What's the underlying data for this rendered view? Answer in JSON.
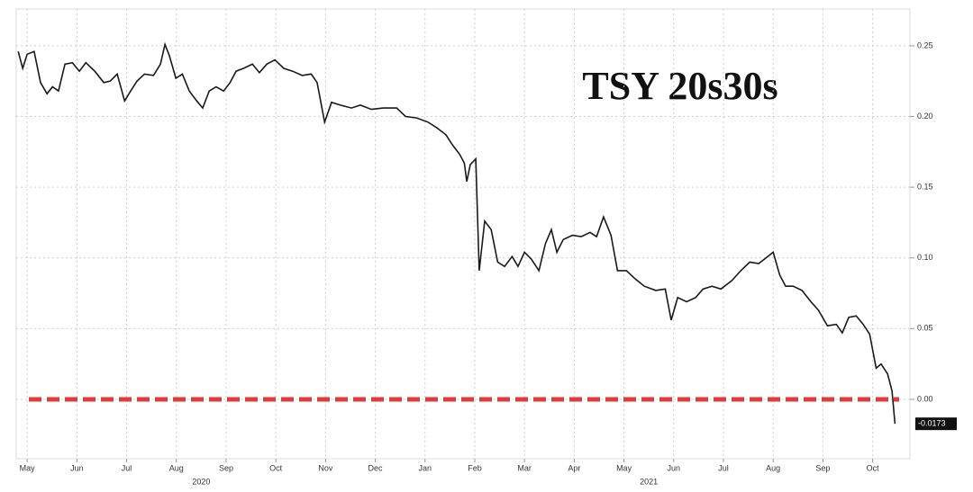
{
  "chart_data": {
    "type": "line",
    "title": "TSY 20s30s",
    "x": [
      -0.18,
      -0.09,
      0,
      0.14,
      0.27,
      0.4,
      0.51,
      0.63,
      0.76,
      0.91,
      1.05,
      1.18,
      1.36,
      1.54,
      1.67,
      1.81,
      1.96,
      2.08,
      2.21,
      2.36,
      2.54,
      2.68,
      2.77,
      2.86,
      2.99,
      3.12,
      3.26,
      3.41,
      3.53,
      3.66,
      3.8,
      3.95,
      4.08,
      4.2,
      4.35,
      4.53,
      4.67,
      4.82,
      4.98,
      5.16,
      5.34,
      5.53,
      5.71,
      5.83,
      5.98,
      6.12,
      6.3,
      6.52,
      6.7,
      6.92,
      7.16,
      7.43,
      7.61,
      7.83,
      8.06,
      8.24,
      8.42,
      8.55,
      8.7,
      8.79,
      8.84,
      8.91,
      9.02,
      9.09,
      9.2,
      9.33,
      9.46,
      9.6,
      9.75,
      9.87,
      10.0,
      10.14,
      10.29,
      10.42,
      10.54,
      10.65,
      10.78,
      10.96,
      11.14,
      11.32,
      11.45,
      11.59,
      11.74,
      11.87,
      12.05,
      12.23,
      12.41,
      12.64,
      12.83,
      12.95,
      13.08,
      13.26,
      13.44,
      13.59,
      13.77,
      13.95,
      14.17,
      14.35,
      14.53,
      14.71,
      14.89,
      15.0,
      15.13,
      15.25,
      15.4,
      15.58,
      15.76,
      15.91,
      16.09,
      16.27,
      16.39,
      16.52,
      16.67,
      16.81,
      16.94,
      17.07,
      17.17,
      17.3,
      17.39,
      17.45
    ],
    "series": [
      {
        "name": "TSY 20s30s",
        "color": "#1a1a1a",
        "values": [
          0.246,
          0.234,
          0.244,
          0.246,
          0.224,
          0.216,
          0.221,
          0.218,
          0.237,
          0.238,
          0.232,
          0.238,
          0.232,
          0.224,
          0.225,
          0.23,
          0.211,
          0.218,
          0.225,
          0.23,
          0.229,
          0.237,
          0.251,
          0.243,
          0.227,
          0.23,
          0.218,
          0.211,
          0.206,
          0.218,
          0.221,
          0.218,
          0.224,
          0.232,
          0.234,
          0.237,
          0.231,
          0.237,
          0.24,
          0.234,
          0.232,
          0.229,
          0.23,
          0.224,
          0.196,
          0.21,
          0.208,
          0.206,
          0.208,
          0.205,
          0.206,
          0.206,
          0.2,
          0.199,
          0.196,
          0.192,
          0.187,
          0.18,
          0.173,
          0.167,
          0.154,
          0.166,
          0.17,
          0.091,
          0.126,
          0.12,
          0.097,
          0.094,
          0.101,
          0.094,
          0.104,
          0.099,
          0.091,
          0.11,
          0.12,
          0.104,
          0.113,
          0.116,
          0.115,
          0.118,
          0.115,
          0.129,
          0.116,
          0.091,
          0.091,
          0.085,
          0.08,
          0.077,
          0.078,
          0.056,
          0.072,
          0.069,
          0.072,
          0.078,
          0.08,
          0.078,
          0.084,
          0.091,
          0.097,
          0.096,
          0.101,
          0.104,
          0.088,
          0.08,
          0.08,
          0.077,
          0.069,
          0.063,
          0.052,
          0.053,
          0.047,
          0.058,
          0.059,
          0.053,
          0.046,
          0.022,
          0.025,
          0.018,
          0.006,
          -0.0173
        ]
      }
    ],
    "xlim": [
      -0.22,
      17.75
    ],
    "xticks": [
      {
        "value": 0,
        "label": "May"
      },
      {
        "value": 1,
        "label": "Jun"
      },
      {
        "value": 2,
        "label": "Jul"
      },
      {
        "value": 3,
        "label": "Aug"
      },
      {
        "value": 4,
        "label": "Sep"
      },
      {
        "value": 5,
        "label": "Oct"
      },
      {
        "value": 6,
        "label": "Nov"
      },
      {
        "value": 7,
        "label": "Dec"
      },
      {
        "value": 8,
        "label": "Jan"
      },
      {
        "value": 9,
        "label": "Feb"
      },
      {
        "value": 10,
        "label": "Mar"
      },
      {
        "value": 11,
        "label": "Apr"
      },
      {
        "value": 12,
        "label": "May"
      },
      {
        "value": 13,
        "label": "Jun"
      },
      {
        "value": 14,
        "label": "Jul"
      },
      {
        "value": 15,
        "label": "Aug"
      },
      {
        "value": 16,
        "label": "Sep"
      },
      {
        "value": 17,
        "label": "Oct"
      }
    ],
    "year_labels": [
      {
        "value": 3.5,
        "label": "2020"
      },
      {
        "value": 12.5,
        "label": "2021"
      }
    ],
    "ylim": [
      -0.042,
      0.276
    ],
    "yticks": [
      {
        "value": 0.25,
        "label": "0.25"
      },
      {
        "value": 0.2,
        "label": "0.20"
      },
      {
        "value": 0.15,
        "label": "0.15"
      },
      {
        "value": 0.1,
        "label": "0.10"
      },
      {
        "value": 0.05,
        "label": "0.05"
      },
      {
        "value": 0,
        "label": "0.00"
      }
    ],
    "grid": true,
    "reference_line": {
      "value": 0,
      "color": "#e03a3a"
    },
    "end_label": {
      "value": -0.0173,
      "label": "-0.0173"
    }
  }
}
